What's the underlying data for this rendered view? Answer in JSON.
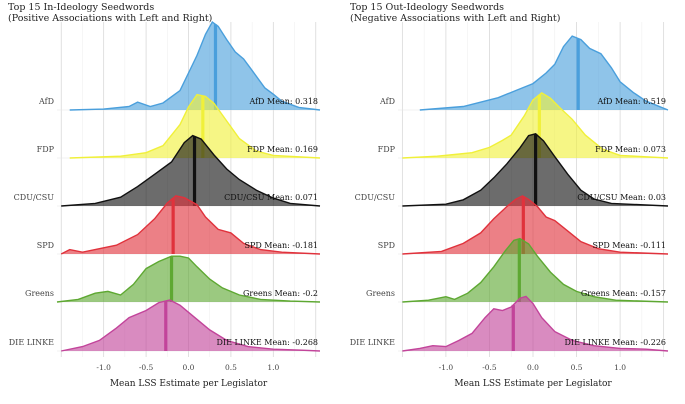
{
  "chart_data": [
    {
      "type": "ridgeline-density",
      "title": "Top 15 In-Ideology Seedwords",
      "subtitle": "(Positive Associations with Left and Right)",
      "xlabel": "Mean LSS Estimate per Legislator",
      "ylabel": "",
      "xlim": [
        -1.55,
        1.55
      ],
      "x_ticks": [
        -1.0,
        -0.5,
        0.0,
        0.5,
        1.0
      ],
      "x_tick_labels": [
        "-1.0",
        "-0.5",
        "0.0",
        "0.5",
        "1.0"
      ],
      "grid": true,
      "series": [
        {
          "name": "AfD",
          "mean": 0.318,
          "mean_label": "AfD Mean: 0.318",
          "color": "#4a9fdc",
          "density": [
            [
              -1.4,
              0.0
            ],
            [
              -1.0,
              0.01
            ],
            [
              -0.7,
              0.04
            ],
            [
              -0.6,
              0.09
            ],
            [
              -0.45,
              0.04
            ],
            [
              -0.3,
              0.08
            ],
            [
              -0.1,
              0.22
            ],
            [
              0.0,
              0.42
            ],
            [
              0.1,
              0.62
            ],
            [
              0.2,
              0.86
            ],
            [
              0.28,
              1.0
            ],
            [
              0.35,
              0.95
            ],
            [
              0.45,
              0.8
            ],
            [
              0.55,
              0.66
            ],
            [
              0.65,
              0.58
            ],
            [
              0.75,
              0.45
            ],
            [
              0.9,
              0.25
            ],
            [
              1.0,
              0.18
            ],
            [
              1.1,
              0.1
            ],
            [
              1.3,
              0.03
            ],
            [
              1.55,
              0.0
            ]
          ]
        },
        {
          "name": "FDP",
          "mean": 0.169,
          "mean_label": "FDP Mean: 0.169",
          "color": "#f0f03a",
          "density": [
            [
              -1.4,
              0.0
            ],
            [
              -0.8,
              0.02
            ],
            [
              -0.5,
              0.06
            ],
            [
              -0.3,
              0.14
            ],
            [
              -0.1,
              0.38
            ],
            [
              0.0,
              0.58
            ],
            [
              0.1,
              0.72
            ],
            [
              0.2,
              0.7
            ],
            [
              0.3,
              0.62
            ],
            [
              0.45,
              0.42
            ],
            [
              0.6,
              0.22
            ],
            [
              0.8,
              0.08
            ],
            [
              1.0,
              0.03
            ],
            [
              1.55,
              0.0
            ]
          ]
        },
        {
          "name": "CDU/CSU",
          "mean": 0.071,
          "mean_label": "CDU/CSU Mean: 0.071",
          "color": "#111111",
          "density": [
            [
              -1.5,
              0.0
            ],
            [
              -1.1,
              0.03
            ],
            [
              -0.8,
              0.1
            ],
            [
              -0.6,
              0.22
            ],
            [
              -0.4,
              0.36
            ],
            [
              -0.2,
              0.5
            ],
            [
              -0.05,
              0.72
            ],
            [
              0.05,
              0.8
            ],
            [
              0.15,
              0.76
            ],
            [
              0.3,
              0.58
            ],
            [
              0.45,
              0.42
            ],
            [
              0.6,
              0.3
            ],
            [
              0.8,
              0.18
            ],
            [
              1.0,
              0.09
            ],
            [
              1.2,
              0.03
            ],
            [
              1.55,
              0.0
            ]
          ]
        },
        {
          "name": "SPD",
          "mean": -0.181,
          "mean_label": "SPD Mean: -0.181",
          "color": "#e0323c",
          "density": [
            [
              -1.5,
              0.0
            ],
            [
              -1.4,
              0.05
            ],
            [
              -1.25,
              0.02
            ],
            [
              -1.05,
              0.06
            ],
            [
              -0.85,
              0.1
            ],
            [
              -0.6,
              0.22
            ],
            [
              -0.4,
              0.4
            ],
            [
              -0.25,
              0.58
            ],
            [
              -0.15,
              0.66
            ],
            [
              -0.05,
              0.64
            ],
            [
              0.1,
              0.56
            ],
            [
              0.2,
              0.42
            ],
            [
              0.35,
              0.28
            ],
            [
              0.5,
              0.24
            ],
            [
              0.65,
              0.12
            ],
            [
              0.85,
              0.05
            ],
            [
              1.1,
              0.02
            ],
            [
              1.55,
              0.0
            ]
          ]
        },
        {
          "name": "Greens",
          "mean": -0.2,
          "mean_label": "Greens Mean: -0.2",
          "color": "#5ea832",
          "density": [
            [
              -1.55,
              0.0
            ],
            [
              -1.3,
              0.03
            ],
            [
              -1.1,
              0.1
            ],
            [
              -0.95,
              0.12
            ],
            [
              -0.8,
              0.08
            ],
            [
              -0.65,
              0.2
            ],
            [
              -0.5,
              0.38
            ],
            [
              -0.35,
              0.46
            ],
            [
              -0.2,
              0.52
            ],
            [
              -0.1,
              0.52
            ],
            [
              0.0,
              0.5
            ],
            [
              0.1,
              0.4
            ],
            [
              0.25,
              0.26
            ],
            [
              0.4,
              0.16
            ],
            [
              0.6,
              0.08
            ],
            [
              0.85,
              0.03
            ],
            [
              1.2,
              0.01
            ],
            [
              1.55,
              0.0
            ]
          ]
        },
        {
          "name": "DIE LINKE",
          "mean": -0.268,
          "mean_label": "DIE LINKE Mean: -0.268",
          "color": "#c2449a",
          "density": [
            [
              -1.5,
              0.0
            ],
            [
              -1.25,
              0.05
            ],
            [
              -1.05,
              0.12
            ],
            [
              -0.85,
              0.26
            ],
            [
              -0.7,
              0.38
            ],
            [
              -0.5,
              0.46
            ],
            [
              -0.35,
              0.55
            ],
            [
              -0.22,
              0.58
            ],
            [
              -0.1,
              0.52
            ],
            [
              0.05,
              0.4
            ],
            [
              0.25,
              0.24
            ],
            [
              0.45,
              0.12
            ],
            [
              0.7,
              0.05
            ],
            [
              1.0,
              0.02
            ],
            [
              1.3,
              0.01
            ],
            [
              1.55,
              0.0
            ]
          ]
        }
      ]
    },
    {
      "type": "ridgeline-density",
      "title": "Top 15 Out-Ideology Seedwords",
      "subtitle": "(Negative Associations with Left and Right)",
      "xlabel": "Mean LSS Estimate per Legislator",
      "ylabel": "",
      "xlim": [
        -1.55,
        1.55
      ],
      "x_ticks": [
        -1.0,
        -0.5,
        0.0,
        0.5,
        1.0
      ],
      "x_tick_labels": [
        "-1.0",
        "-0.5",
        "0.0",
        "0.5",
        "1.0"
      ],
      "grid": true,
      "series": [
        {
          "name": "AfD",
          "mean": 0.519,
          "mean_label": "AfD Mean: 0.519",
          "color": "#4a9fdc",
          "density": [
            [
              -1.3,
              0.0
            ],
            [
              -0.8,
              0.04
            ],
            [
              -0.4,
              0.14
            ],
            [
              -0.2,
              0.22
            ],
            [
              0.0,
              0.3
            ],
            [
              0.15,
              0.42
            ],
            [
              0.25,
              0.52
            ],
            [
              0.35,
              0.72
            ],
            [
              0.45,
              0.84
            ],
            [
              0.55,
              0.8
            ],
            [
              0.65,
              0.7
            ],
            [
              0.78,
              0.64
            ],
            [
              0.9,
              0.48
            ],
            [
              1.0,
              0.32
            ],
            [
              1.15,
              0.2
            ],
            [
              1.3,
              0.1
            ],
            [
              1.55,
              0.0
            ]
          ]
        },
        {
          "name": "FDP",
          "mean": 0.073,
          "mean_label": "FDP Mean: 0.073",
          "color": "#f0f03a",
          "density": [
            [
              -1.5,
              0.0
            ],
            [
              -1.1,
              0.02
            ],
            [
              -0.9,
              0.04
            ],
            [
              -0.7,
              0.06
            ],
            [
              -0.5,
              0.12
            ],
            [
              -0.35,
              0.2
            ],
            [
              -0.25,
              0.26
            ],
            [
              -0.1,
              0.48
            ],
            [
              0.0,
              0.66
            ],
            [
              0.1,
              0.74
            ],
            [
              0.2,
              0.68
            ],
            [
              0.3,
              0.58
            ],
            [
              0.45,
              0.44
            ],
            [
              0.6,
              0.26
            ],
            [
              0.8,
              0.1
            ],
            [
              1.0,
              0.03
            ],
            [
              1.55,
              0.0
            ]
          ]
        },
        {
          "name": "CDU/CSU",
          "mean": 0.03,
          "mean_label": "CDU/CSU Mean: 0.03",
          "color": "#111111",
          "density": [
            [
              -1.5,
              0.0
            ],
            [
              -1.0,
              0.02
            ],
            [
              -0.8,
              0.07
            ],
            [
              -0.6,
              0.18
            ],
            [
              -0.45,
              0.32
            ],
            [
              -0.3,
              0.48
            ],
            [
              -0.15,
              0.66
            ],
            [
              -0.05,
              0.8
            ],
            [
              0.03,
              0.82
            ],
            [
              0.12,
              0.74
            ],
            [
              0.25,
              0.56
            ],
            [
              0.4,
              0.36
            ],
            [
              0.55,
              0.18
            ],
            [
              0.7,
              0.08
            ],
            [
              0.9,
              0.03
            ],
            [
              1.55,
              0.0
            ]
          ]
        },
        {
          "name": "SPD",
          "mean": -0.111,
          "mean_label": "SPD Mean: -0.111",
          "color": "#e0323c",
          "density": [
            [
              -1.5,
              0.0
            ],
            [
              -1.05,
              0.03
            ],
            [
              -0.8,
              0.12
            ],
            [
              -0.6,
              0.24
            ],
            [
              -0.45,
              0.4
            ],
            [
              -0.3,
              0.54
            ],
            [
              -0.2,
              0.62
            ],
            [
              -0.12,
              0.66
            ],
            [
              -0.05,
              0.62
            ],
            [
              0.05,
              0.54
            ],
            [
              0.15,
              0.42
            ],
            [
              0.25,
              0.38
            ],
            [
              0.4,
              0.26
            ],
            [
              0.55,
              0.14
            ],
            [
              0.75,
              0.06
            ],
            [
              1.0,
              0.02
            ],
            [
              1.55,
              0.0
            ]
          ]
        },
        {
          "name": "Greens",
          "mean": -0.157,
          "mean_label": "Greens Mean: -0.157",
          "color": "#5ea832",
          "density": [
            [
              -1.5,
              0.0
            ],
            [
              -1.2,
              0.02
            ],
            [
              -1.0,
              0.06
            ],
            [
              -0.9,
              0.03
            ],
            [
              -0.75,
              0.1
            ],
            [
              -0.6,
              0.22
            ],
            [
              -0.45,
              0.4
            ],
            [
              -0.32,
              0.58
            ],
            [
              -0.22,
              0.7
            ],
            [
              -0.15,
              0.72
            ],
            [
              -0.05,
              0.66
            ],
            [
              0.05,
              0.52
            ],
            [
              0.2,
              0.34
            ],
            [
              0.35,
              0.2
            ],
            [
              0.5,
              0.12
            ],
            [
              0.7,
              0.06
            ],
            [
              0.95,
              0.02
            ],
            [
              1.55,
              0.0
            ]
          ]
        },
        {
          "name": "DIE LINKE",
          "mean": -0.226,
          "mean_label": "DIE LINKE Mean: -0.226",
          "color": "#c2449a",
          "density": [
            [
              -1.5,
              0.0
            ],
            [
              -1.3,
              0.03
            ],
            [
              -1.15,
              0.06
            ],
            [
              -1.0,
              0.05
            ],
            [
              -0.85,
              0.12
            ],
            [
              -0.7,
              0.2
            ],
            [
              -0.55,
              0.38
            ],
            [
              -0.45,
              0.48
            ],
            [
              -0.35,
              0.46
            ],
            [
              -0.25,
              0.5
            ],
            [
              -0.15,
              0.6
            ],
            [
              -0.08,
              0.62
            ],
            [
              0.0,
              0.54
            ],
            [
              0.1,
              0.38
            ],
            [
              0.25,
              0.22
            ],
            [
              0.45,
              0.12
            ],
            [
              0.7,
              0.06
            ],
            [
              1.0,
              0.03
            ],
            [
              1.3,
              0.02
            ],
            [
              1.55,
              0.0
            ]
          ]
        }
      ]
    }
  ]
}
